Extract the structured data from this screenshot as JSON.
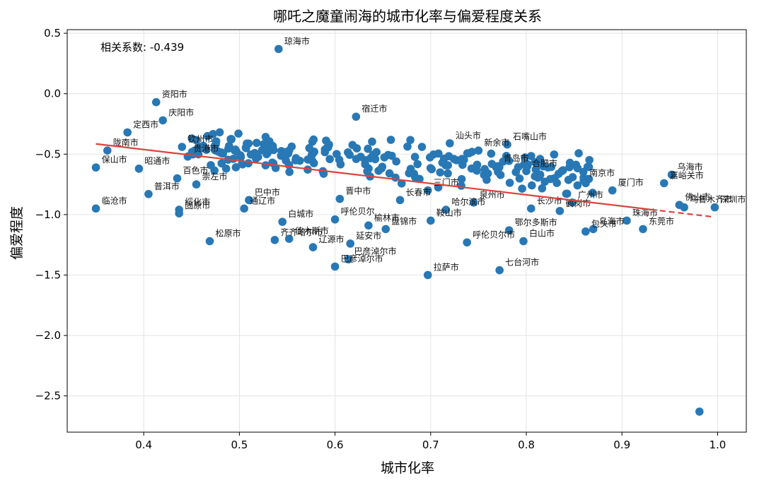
{
  "chart_data": {
    "type": "scatter",
    "title": "哪吒之魔童闹海的城市化率与偏爱程度关系",
    "xlabel": "城市化率",
    "ylabel": "偏爱程度",
    "xlim": [
      0.32,
      1.03
    ],
    "ylim": [
      -2.8,
      0.53
    ],
    "xticks": [
      0.4,
      0.5,
      0.6,
      0.7,
      0.8,
      0.9,
      1.0
    ],
    "xtick_labels": [
      "0.4",
      "0.5",
      "0.6",
      "0.7",
      "0.8",
      "0.9",
      "1.0"
    ],
    "yticks": [
      -2.5,
      -2.0,
      -1.5,
      -1.0,
      -0.5,
      0.0,
      0.5
    ],
    "ytick_labels": [
      "−2.5",
      "−2.0",
      "−1.5",
      "−1.0",
      "−0.5",
      "0.0",
      "0.5"
    ],
    "grid": true,
    "annotation": "相关系数: -0.439",
    "marker_color": "#2878b5",
    "trend_color": "#d9443f",
    "trendline": {
      "x": [
        0.35,
        0.9965
      ],
      "y": [
        -0.415,
        -1.02
      ],
      "dashed_from_x": 0.93
    },
    "labeled_points": [
      {
        "x": 0.541,
        "y": 0.37,
        "label": "琼海市"
      },
      {
        "x": 0.413,
        "y": -0.07,
        "label": "资阳市"
      },
      {
        "x": 0.383,
        "y": -0.32,
        "label": "定西市"
      },
      {
        "x": 0.362,
        "y": -0.47,
        "label": "陇南市"
      },
      {
        "x": 0.35,
        "y": -0.61,
        "label": "保山市"
      },
      {
        "x": 0.395,
        "y": -0.62,
        "label": "昭通市"
      },
      {
        "x": 0.405,
        "y": -0.83,
        "label": "普洱市"
      },
      {
        "x": 0.35,
        "y": -0.95,
        "label": "临沧市"
      },
      {
        "x": 0.435,
        "y": -0.7,
        "label": "百色市"
      },
      {
        "x": 0.455,
        "y": -0.75,
        "label": "崇左市"
      },
      {
        "x": 0.437,
        "y": -0.96,
        "label": "绥化市"
      },
      {
        "x": 0.437,
        "y": -0.99,
        "label": "固原市"
      },
      {
        "x": 0.469,
        "y": -1.22,
        "label": "松原市"
      },
      {
        "x": 0.42,
        "y": -0.22,
        "label": "庆阳市"
      },
      {
        "x": 0.44,
        "y": -0.44,
        "label": "钦州市"
      },
      {
        "x": 0.446,
        "y": -0.52,
        "label": "贵港市"
      },
      {
        "x": 0.51,
        "y": -0.88,
        "label": "巴中市"
      },
      {
        "x": 0.505,
        "y": -0.95,
        "label": "通辽市"
      },
      {
        "x": 0.545,
        "y": -1.06,
        "label": "白城市"
      },
      {
        "x": 0.537,
        "y": -1.21,
        "label": "齐齐哈尔市"
      },
      {
        "x": 0.552,
        "y": -1.2,
        "label": "佳木斯市"
      },
      {
        "x": 0.577,
        "y": -1.27,
        "label": "辽源市"
      },
      {
        "x": 0.6,
        "y": -1.43,
        "label": "巴彦淖尔市"
      },
      {
        "x": 0.616,
        "y": -1.24,
        "label": "延安市"
      },
      {
        "x": 0.614,
        "y": -1.37,
        "label": "巴彦淖尔市"
      },
      {
        "x": 0.635,
        "y": -1.09,
        "label": "榆林市"
      },
      {
        "x": 0.605,
        "y": -0.87,
        "label": "晋中市"
      },
      {
        "x": 0.6,
        "y": -1.04,
        "label": "呼伦贝尔"
      },
      {
        "x": 0.622,
        "y": -0.19,
        "label": "宿迁市"
      },
      {
        "x": 0.668,
        "y": -0.88,
        "label": "长春市"
      },
      {
        "x": 0.653,
        "y": -1.12,
        "label": "盘锦市"
      },
      {
        "x": 0.7,
        "y": -1.05,
        "label": "鞍山市"
      },
      {
        "x": 0.716,
        "y": -0.96,
        "label": "哈尔滨市"
      },
      {
        "x": 0.697,
        "y": -1.5,
        "label": "拉萨市"
      },
      {
        "x": 0.697,
        "y": -0.8,
        "label": "三门市"
      },
      {
        "x": 0.72,
        "y": -0.41,
        "label": "汕头市"
      },
      {
        "x": 0.75,
        "y": -0.47,
        "label": "新余市"
      },
      {
        "x": 0.78,
        "y": -0.42,
        "label": "石嘴山市"
      },
      {
        "x": 0.77,
        "y": -0.6,
        "label": "青岛市"
      },
      {
        "x": 0.738,
        "y": -1.23,
        "label": "呼伦贝尔市"
      },
      {
        "x": 0.772,
        "y": -1.46,
        "label": "七台河市"
      },
      {
        "x": 0.797,
        "y": -1.22,
        "label": "白山市"
      },
      {
        "x": 0.782,
        "y": -1.13,
        "label": "鄂尔多斯市"
      },
      {
        "x": 0.8,
        "y": -0.64,
        "label": "合肥市"
      },
      {
        "x": 0.745,
        "y": -0.9,
        "label": "泉州市"
      },
      {
        "x": 0.805,
        "y": -0.95,
        "label": "长沙市"
      },
      {
        "x": 0.835,
        "y": -0.97,
        "label": "鹤岗市"
      },
      {
        "x": 0.862,
        "y": -1.14,
        "label": "包头市"
      },
      {
        "x": 0.87,
        "y": -1.12,
        "label": "乌海市"
      },
      {
        "x": 0.848,
        "y": -0.9,
        "label": "广州市"
      },
      {
        "x": 0.89,
        "y": -0.8,
        "label": "厦门市"
      },
      {
        "x": 0.86,
        "y": -0.72,
        "label": "南京市"
      },
      {
        "x": 0.905,
        "y": -1.05,
        "label": "珠海市"
      },
      {
        "x": 0.922,
        "y": -1.12,
        "label": "东莞市"
      },
      {
        "x": 0.944,
        "y": -0.74,
        "label": "嘉峪关市"
      },
      {
        "x": 0.952,
        "y": -0.67,
        "label": "乌海市"
      },
      {
        "x": 0.96,
        "y": -0.92,
        "label": "佛山市"
      },
      {
        "x": 0.965,
        "y": -0.94,
        "label": "乌鲁木齐市"
      },
      {
        "x": 0.997,
        "y": -0.94,
        "label": "深圳市"
      },
      {
        "x": 0.981,
        "y": -2.63,
        "label": ""
      }
    ]
  }
}
